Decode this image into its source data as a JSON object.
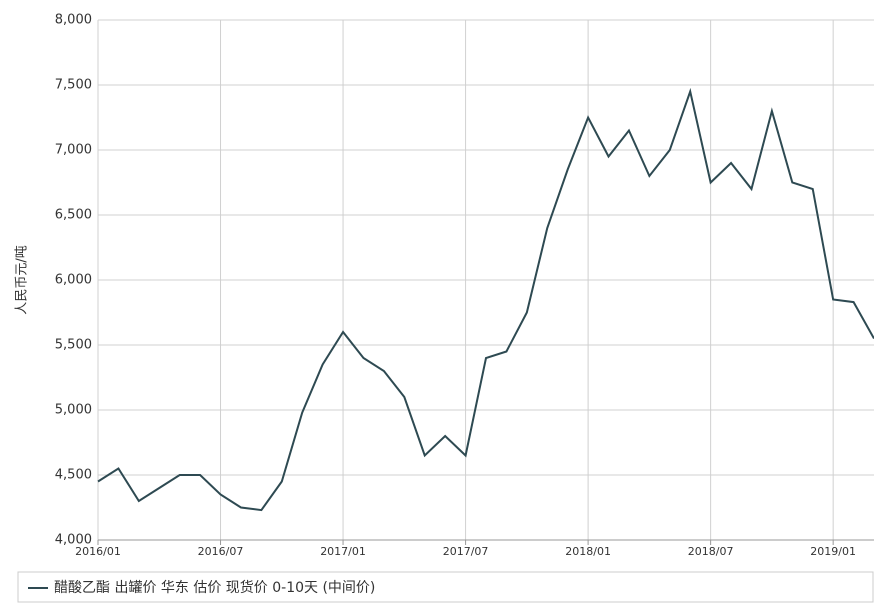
{
  "chart_data": {
    "type": "line",
    "y_label": "人民币元/吨",
    "x": [
      "2016/01",
      "2016/02",
      "2016/03",
      "2016/04",
      "2016/05",
      "2016/06",
      "2016/07",
      "2016/08",
      "2016/09",
      "2016/10",
      "2016/11",
      "2016/12",
      "2017/01",
      "2017/02",
      "2017/03",
      "2017/04",
      "2017/05",
      "2017/06",
      "2017/07",
      "2017/08",
      "2017/09",
      "2017/10",
      "2017/11",
      "2017/12",
      "2018/01",
      "2018/02",
      "2018/03",
      "2018/04",
      "2018/05",
      "2018/06",
      "2018/07",
      "2018/08",
      "2018/09",
      "2018/10",
      "2018/11",
      "2018/12",
      "2019/01",
      "2019/02",
      "2019/03"
    ],
    "series": [
      {
        "name": "醋酸乙酯 出罐价 华东 估价 现货价 0-10天 (中间价)",
        "color": "#2e4a52",
        "values": [
          4450,
          4550,
          4300,
          4400,
          4500,
          4500,
          4350,
          4250,
          4230,
          4450,
          4980,
          5350,
          5600,
          5400,
          5300,
          5100,
          4650,
          4800,
          4650,
          5400,
          5450,
          5750,
          6400,
          6850,
          7250,
          6950,
          7150,
          6800,
          7000,
          7450,
          6750,
          6900,
          6700,
          7300,
          6750,
          6700,
          5850,
          5830,
          5550
        ]
      }
    ],
    "xlim": [
      "2016/01",
      "2019/03"
    ],
    "xticks": [
      "2016/01",
      "2016/07",
      "2017/01",
      "2017/07",
      "2018/01",
      "2018/07",
      "2019/01"
    ],
    "ylim": [
      4000,
      8000
    ],
    "yticks": [
      {
        "value": 4000,
        "label": "4,000"
      },
      {
        "value": 4500,
        "label": "4,500"
      },
      {
        "value": 5000,
        "label": "5,000"
      },
      {
        "value": 5500,
        "label": "5,500"
      },
      {
        "value": 6000,
        "label": "6,000"
      },
      {
        "value": 6500,
        "label": "6,500"
      },
      {
        "value": 7000,
        "label": "7,000"
      },
      {
        "value": 7500,
        "label": "7,500"
      },
      {
        "value": 8000,
        "label": "8,000"
      }
    ],
    "grid": true
  }
}
